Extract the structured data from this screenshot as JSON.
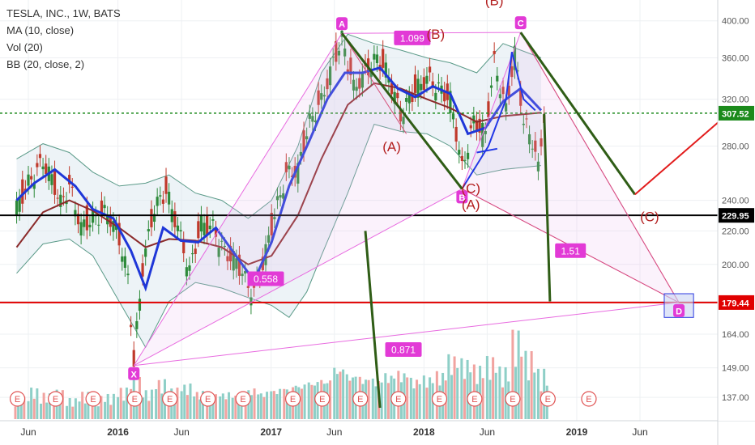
{
  "header": {
    "symbol_line": "TESLA, INC., 1W, BATS",
    "indicators": [
      "MA (10, close)",
      "Vol (20)",
      "BB (20, close, 2)"
    ]
  },
  "chart_data": {
    "type": "candlestick",
    "symbol": "TESLA, INC.",
    "interval": "1W",
    "exchange": "BATS",
    "y_scale": "log",
    "ylim": [
      133,
      410
    ],
    "y_ticks": [
      137,
      149,
      164,
      180,
      200,
      220,
      240,
      280,
      320,
      360,
      400
    ],
    "x_ticks": [
      {
        "date": "2015-06-01",
        "label": "Jun"
      },
      {
        "date": "2016-01-01",
        "label": "2016"
      },
      {
        "date": "2016-06-01",
        "label": "Jun"
      },
      {
        "date": "2017-01-01",
        "label": "2017"
      },
      {
        "date": "2017-06-01",
        "label": "Jun"
      },
      {
        "date": "2018-01-01",
        "label": "2018"
      },
      {
        "date": "2018-06-01",
        "label": "Jun"
      },
      {
        "date": "2019-01-01",
        "label": "2019"
      },
      {
        "date": "2019-06-01",
        "label": "Jun"
      }
    ],
    "price_levels": [
      {
        "value": 307.52,
        "label": "307.52",
        "color": "#1b8a1b",
        "style": "dotted"
      },
      {
        "value": 229.95,
        "label": "229.95",
        "color": "#000000",
        "style": "solid"
      },
      {
        "value": 179.44,
        "label": "179.44",
        "color": "#e00000",
        "style": "solid"
      }
    ],
    "price_series": [
      [
        "2015-05-04",
        235
      ],
      [
        "2015-06-01",
        252
      ],
      [
        "2015-07-06",
        268
      ],
      [
        "2015-07-27",
        255
      ],
      [
        "2015-08-17",
        238
      ],
      [
        "2015-09-07",
        250
      ],
      [
        "2015-10-05",
        222
      ],
      [
        "2015-11-02",
        228
      ],
      [
        "2015-12-07",
        232
      ],
      [
        "2016-01-04",
        215
      ],
      [
        "2016-01-25",
        193
      ],
      [
        "2016-02-08",
        150
      ],
      [
        "2016-02-29",
        198
      ],
      [
        "2016-03-28",
        235
      ],
      [
        "2016-04-25",
        246
      ],
      [
        "2016-05-23",
        222
      ],
      [
        "2016-06-20",
        196
      ],
      [
        "2016-07-18",
        225
      ],
      [
        "2016-08-15",
        222
      ],
      [
        "2016-09-12",
        207
      ],
      [
        "2016-10-10",
        202
      ],
      [
        "2016-11-07",
        188
      ],
      [
        "2016-11-21",
        185
      ],
      [
        "2016-12-12",
        200
      ],
      [
        "2017-01-09",
        230
      ],
      [
        "2017-02-06",
        258
      ],
      [
        "2017-03-06",
        262
      ],
      [
        "2017-04-03",
        300
      ],
      [
        "2017-05-01",
        318
      ],
      [
        "2017-05-29",
        355
      ],
      [
        "2017-06-19",
        380
      ],
      [
        "2017-07-17",
        330
      ],
      [
        "2017-08-14",
        345
      ],
      [
        "2017-09-11",
        360
      ],
      [
        "2017-10-09",
        342
      ],
      [
        "2017-11-06",
        305
      ],
      [
        "2017-12-04",
        325
      ],
      [
        "2018-01-08",
        340
      ],
      [
        "2018-02-05",
        330
      ],
      [
        "2018-03-05",
        320
      ],
      [
        "2018-04-02",
        262
      ],
      [
        "2018-04-30",
        300
      ],
      [
        "2018-05-28",
        290
      ],
      [
        "2018-06-18",
        355
      ],
      [
        "2018-07-16",
        310
      ],
      [
        "2018-08-06",
        365
      ],
      [
        "2018-08-27",
        300
      ],
      [
        "2018-09-17",
        285
      ],
      [
        "2018-10-01",
        262
      ],
      [
        "2018-10-15",
        305
      ]
    ],
    "ma10_series": [
      [
        "2015-05-04",
        240
      ],
      [
        "2015-06-15",
        252
      ],
      [
        "2015-08-03",
        262
      ],
      [
        "2015-09-21",
        250
      ],
      [
        "2015-11-02",
        234
      ],
      [
        "2015-12-21",
        228
      ],
      [
        "2016-02-01",
        208
      ],
      [
        "2016-03-07",
        187
      ],
      [
        "2016-04-18",
        222
      ],
      [
        "2016-05-30",
        214
      ],
      [
        "2016-07-11",
        213
      ],
      [
        "2016-08-22",
        222
      ],
      [
        "2016-10-03",
        207
      ],
      [
        "2016-11-21",
        191
      ],
      [
        "2017-01-02",
        213
      ],
      [
        "2017-02-13",
        250
      ],
      [
        "2017-04-03",
        285
      ],
      [
        "2017-05-15",
        320
      ],
      [
        "2017-06-26",
        345
      ],
      [
        "2017-08-07",
        345
      ],
      [
        "2017-09-18",
        350
      ],
      [
        "2017-10-30",
        330
      ],
      [
        "2017-12-11",
        322
      ],
      [
        "2018-01-22",
        332
      ],
      [
        "2018-03-05",
        325
      ],
      [
        "2018-04-16",
        290
      ],
      [
        "2018-05-28",
        295
      ],
      [
        "2018-07-09",
        318
      ],
      [
        "2018-08-20",
        330
      ],
      [
        "2018-10-08",
        310
      ]
    ],
    "ma_long_series": [
      [
        "2015-05-04",
        210
      ],
      [
        "2015-07-06",
        232
      ],
      [
        "2015-09-07",
        240
      ],
      [
        "2015-11-02",
        233
      ],
      [
        "2016-01-04",
        222
      ],
      [
        "2016-03-07",
        210
      ],
      [
        "2016-05-02",
        215
      ],
      [
        "2016-07-04",
        214
      ],
      [
        "2016-09-05",
        210
      ],
      [
        "2016-11-07",
        200
      ],
      [
        "2017-01-02",
        205
      ],
      [
        "2017-03-06",
        230
      ],
      [
        "2017-05-01",
        270
      ],
      [
        "2017-07-03",
        315
      ],
      [
        "2017-09-04",
        335
      ],
      [
        "2017-11-06",
        330
      ],
      [
        "2018-01-08",
        320
      ],
      [
        "2018-03-05",
        312
      ],
      [
        "2018-05-07",
        300
      ],
      [
        "2018-07-09",
        305
      ],
      [
        "2018-10-08",
        308
      ]
    ],
    "bb_upper_series": [
      [
        "2015-05-04",
        270
      ],
      [
        "2015-07-06",
        282
      ],
      [
        "2015-09-07",
        275
      ],
      [
        "2015-11-02",
        260
      ],
      [
        "2016-01-04",
        250
      ],
      [
        "2016-03-07",
        252
      ],
      [
        "2016-05-02",
        258
      ],
      [
        "2016-07-04",
        245
      ],
      [
        "2016-09-05",
        240
      ],
      [
        "2016-11-07",
        228
      ],
      [
        "2017-01-02",
        240
      ],
      [
        "2017-03-06",
        280
      ],
      [
        "2017-05-01",
        345
      ],
      [
        "2017-07-03",
        385
      ],
      [
        "2017-09-04",
        375
      ],
      [
        "2017-11-06",
        368
      ],
      [
        "2018-01-08",
        360
      ],
      [
        "2018-03-05",
        355
      ],
      [
        "2018-05-07",
        345
      ],
      [
        "2018-07-09",
        375
      ],
      [
        "2018-10-08",
        360
      ]
    ],
    "bb_lower_series": [
      [
        "2015-05-04",
        195
      ],
      [
        "2015-07-06",
        212
      ],
      [
        "2015-09-07",
        215
      ],
      [
        "2015-11-02",
        205
      ],
      [
        "2016-01-04",
        180
      ],
      [
        "2016-03-07",
        158
      ],
      [
        "2016-05-02",
        180
      ],
      [
        "2016-07-04",
        190
      ],
      [
        "2016-09-05",
        187
      ],
      [
        "2016-11-07",
        182
      ],
      [
        "2017-01-02",
        178
      ],
      [
        "2017-02-13",
        172
      ],
      [
        "2017-03-27",
        185
      ],
      [
        "2017-05-01",
        205
      ],
      [
        "2017-07-03",
        245
      ],
      [
        "2017-09-04",
        298
      ],
      [
        "2017-11-06",
        292
      ],
      [
        "2018-01-08",
        290
      ],
      [
        "2018-03-05",
        280
      ],
      [
        "2018-05-07",
        258
      ],
      [
        "2018-07-09",
        262
      ],
      [
        "2018-10-08",
        265
      ]
    ],
    "volume_series": [
      [
        "2015-05",
        0.22
      ],
      [
        "2015-06",
        0.3
      ],
      [
        "2015-07",
        0.25
      ],
      [
        "2015-08",
        0.28
      ],
      [
        "2015-09",
        0.2
      ],
      [
        "2015-10",
        0.26
      ],
      [
        "2015-11",
        0.22
      ],
      [
        "2015-12",
        0.24
      ],
      [
        "2016-01",
        0.3
      ],
      [
        "2016-02",
        0.4
      ],
      [
        "2016-03",
        0.28
      ],
      [
        "2016-04",
        0.38
      ],
      [
        "2016-05",
        0.3
      ],
      [
        "2016-06",
        0.34
      ],
      [
        "2016-07",
        0.27
      ],
      [
        "2016-08",
        0.24
      ],
      [
        "2016-09",
        0.26
      ],
      [
        "2016-10",
        0.24
      ],
      [
        "2016-11",
        0.3
      ],
      [
        "2016-12",
        0.27
      ],
      [
        "2017-01",
        0.3
      ],
      [
        "2017-02",
        0.32
      ],
      [
        "2017-03",
        0.35
      ],
      [
        "2017-04",
        0.38
      ],
      [
        "2017-05",
        0.4
      ],
      [
        "2017-06",
        0.52
      ],
      [
        "2017-07",
        0.45
      ],
      [
        "2017-08",
        0.42
      ],
      [
        "2017-09",
        0.4
      ],
      [
        "2017-10",
        0.45
      ],
      [
        "2017-11",
        0.47
      ],
      [
        "2017-12",
        0.4
      ],
      [
        "2018-01",
        0.42
      ],
      [
        "2018-02",
        0.46
      ],
      [
        "2018-03",
        0.62
      ],
      [
        "2018-04",
        0.58
      ],
      [
        "2018-05",
        0.52
      ],
      [
        "2018-06",
        0.6
      ],
      [
        "2018-07",
        0.5
      ],
      [
        "2018-08",
        0.85
      ],
      [
        "2018-09",
        0.65
      ],
      [
        "2018-10",
        0.48
      ]
    ],
    "volume_colors": {
      "up": "#8ecfc7",
      "down": "#f1a3a0"
    },
    "earnings_markers": {
      "label": "E",
      "dates": [
        "2015-05-06",
        "2015-08-05",
        "2015-11-03",
        "2016-02-10",
        "2016-05-04",
        "2016-08-03",
        "2016-10-26",
        "2017-02-22",
        "2017-05-03",
        "2017-08-02",
        "2017-11-01",
        "2018-02-07",
        "2018-05-02",
        "2018-08-01",
        "2018-10-24",
        "2019-01-30"
      ]
    },
    "harmonic_points": [
      {
        "label": "X",
        "date": "2016-02-08",
        "price": 150
      },
      {
        "label": "A",
        "date": "2017-06-19",
        "price": 386
      },
      {
        "label": "B",
        "date": "2018-04-02",
        "price": 248
      },
      {
        "label": "C",
        "date": "2018-08-20",
        "price": 387
      },
      {
        "label": "D",
        "date": "2019-09-02",
        "price": 179.44
      }
    ],
    "ratio_labels": [
      {
        "text": "0.558",
        "date": "2016-12-19",
        "price": 192
      },
      {
        "text": "1.099",
        "date": "2017-12-04",
        "price": 381
      },
      {
        "text": "1.51",
        "date": "2018-12-17",
        "price": 208
      },
      {
        "text": "0.871",
        "date": "2017-11-13",
        "price": 157
      }
    ],
    "wave_labels": [
      {
        "text": "(A)",
        "date": "2017-10-16",
        "price": 276
      },
      {
        "text": "(B)",
        "date": "2018-01-29",
        "price": 380
      },
      {
        "text": "(A)",
        "date": "2018-04-23",
        "price": 234
      },
      {
        "text": "(C)",
        "date": "2018-04-23",
        "price": 245
      },
      {
        "text": "(B)",
        "date": "2018-06-18",
        "price": 418
      },
      {
        "text": "(C)",
        "date": "2019-06-24",
        "price": 226
      }
    ],
    "green_lines": [
      [
        [
          "2017-06-19",
          386
        ],
        [
          "2018-04-02",
          248
        ]
      ],
      [
        [
          "2018-08-20",
          387
        ],
        [
          "2019-05-20",
          244
        ]
      ],
      [
        [
          "2018-10-15",
          307
        ],
        [
          "2018-10-29",
          180
        ]
      ],
      [
        [
          "2017-08-14",
          220
        ],
        [
          "2017-09-18",
          133
        ]
      ]
    ],
    "red_projection": [
      [
        "2019-05-20",
        244
      ],
      [
        "2020-01-13",
        312
      ]
    ],
    "pink_extra_lines": [
      [
        [
          "2017-06-19",
          386
        ],
        [
          "2017-11-20",
          290
        ]
      ],
      [
        [
          "2018-04-02",
          248
        ],
        [
          "2019-09-02",
          179.44
        ]
      ],
      [
        [
          "2018-08-20",
          387
        ],
        [
          "2019-09-02",
          179.44
        ]
      ]
    ],
    "blue_structure": [
      [
        [
          "2018-06-04",
          280
        ],
        [
          "2018-07-16",
          320
        ],
        [
          "2018-07-30",
          366
        ],
        [
          "2018-08-27",
          320
        ],
        [
          "2018-09-24",
          310
        ]
      ],
      [
        [
          "2018-04-02",
          248
        ],
        [
          "2018-06-04",
          280
        ]
      ],
      [
        [
          "2018-05-07",
          275
        ],
        [
          "2018-06-25",
          278
        ]
      ]
    ],
    "target_box": {
      "date_start": "2019-07-29",
      "date_end": "2019-10-07",
      "price_low": 172,
      "price_high": 184
    }
  }
}
